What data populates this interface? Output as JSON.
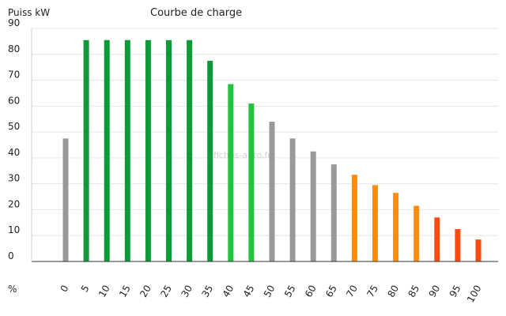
{
  "chart_data": {
    "type": "bar",
    "title": "Courbe de charge",
    "ylabel": "Puiss kW",
    "xlabel": "%",
    "ylim": [
      0,
      90
    ],
    "yticks": [
      0,
      10,
      20,
      30,
      40,
      50,
      60,
      70,
      80,
      90
    ],
    "grid": true,
    "categories": [
      "0",
      "5",
      "10",
      "15",
      "20",
      "25",
      "30",
      "35",
      "40",
      "45",
      "50",
      "55",
      "60",
      "65",
      "70",
      "75",
      "80",
      "85",
      "90",
      "95",
      "100"
    ],
    "values": [
      47.5,
      85.5,
      85.5,
      85.5,
      85.5,
      85.5,
      85.5,
      77.5,
      68.5,
      61,
      54,
      47.5,
      42.5,
      37.5,
      33.5,
      29.5,
      26.5,
      21.5,
      17,
      12.5,
      8.5
    ],
    "colors": [
      "#999999",
      "#0e9a39",
      "#0e9a39",
      "#0e9a39",
      "#0e9a39",
      "#0e9a39",
      "#0e9a39",
      "#0e9a39",
      "#22c33d",
      "#22c33d",
      "#999999",
      "#999999",
      "#999999",
      "#999999",
      "#ff8c0c",
      "#ff8c0c",
      "#ff8c0c",
      "#ff8c0c",
      "#ff4a12",
      "#ff4a12",
      "#ff4a12"
    ],
    "watermark": "fiches-auto.fr"
  }
}
